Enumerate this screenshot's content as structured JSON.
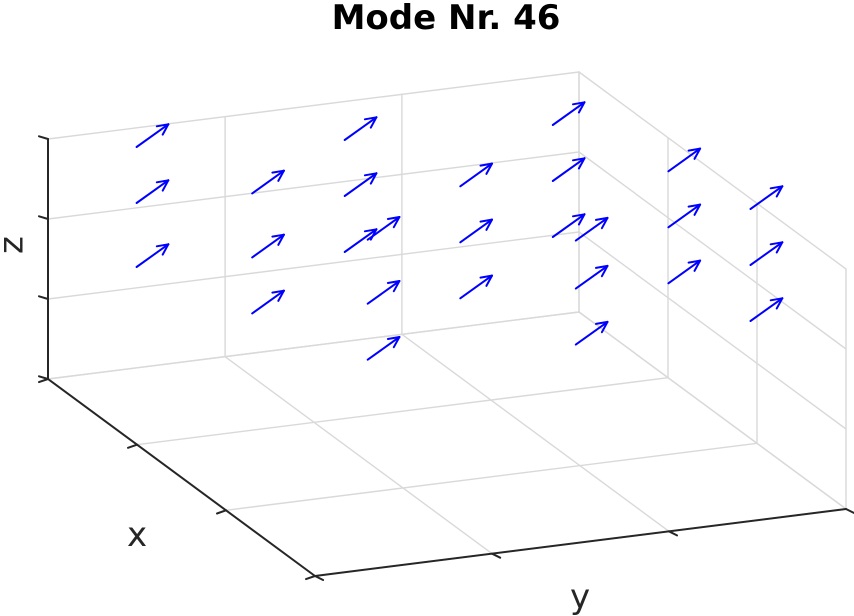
{
  "chart_data": {
    "type": "quiver3d",
    "title": "Mode Nr. 46",
    "xlabel": "x",
    "ylabel": "y",
    "zlabel": "z",
    "grid": true,
    "colors": {
      "arrows": "#0000ff",
      "grid": "#d9d9d9",
      "axis": "#262626",
      "background": "#ffffff"
    },
    "arrows": [
      {
        "x": 0.1,
        "y": 0.25,
        "z": 1.5,
        "u": 0.05,
        "v": 0.05,
        "w": 0.3
      },
      {
        "x": 0.1,
        "y": 0.25,
        "z": 2.3,
        "u": 0.05,
        "v": 0.05,
        "w": 0.3
      },
      {
        "x": 0.1,
        "y": 0.25,
        "z": 3.0,
        "u": 0.05,
        "v": 0.05,
        "w": 0.3
      },
      {
        "x": 0.5,
        "y": 0.35,
        "z": 1.7,
        "u": 0.05,
        "v": 0.05,
        "w": 0.3
      },
      {
        "x": 0.5,
        "y": 0.35,
        "z": 2.4,
        "u": 0.05,
        "v": 0.05,
        "w": 0.3
      },
      {
        "x": 0.5,
        "y": 0.35,
        "z": 3.2,
        "u": 0.05,
        "v": 0.05,
        "w": 0.3
      },
      {
        "x": 0.9,
        "y": 0.45,
        "z": 1.9,
        "u": 0.05,
        "v": 0.05,
        "w": 0.3
      },
      {
        "x": 0.9,
        "y": 0.45,
        "z": 2.6,
        "u": 0.05,
        "v": 0.05,
        "w": 0.3
      },
      {
        "x": 0.9,
        "y": 0.45,
        "z": 3.4,
        "u": 0.05,
        "v": 0.05,
        "w": 0.3
      },
      {
        "x": 0.2,
        "y": 0.95,
        "z": 1.6,
        "u": 0.05,
        "v": 0.05,
        "w": 0.3
      },
      {
        "x": 0.2,
        "y": 0.95,
        "z": 2.3,
        "u": 0.05,
        "v": 0.05,
        "w": 0.3
      },
      {
        "x": 0.2,
        "y": 0.95,
        "z": 3.0,
        "u": 0.05,
        "v": 0.05,
        "w": 0.3
      },
      {
        "x": 0.6,
        "y": 1.05,
        "z": 1.8,
        "u": 0.05,
        "v": 0.05,
        "w": 0.3
      },
      {
        "x": 0.6,
        "y": 1.05,
        "z": 2.5,
        "u": 0.05,
        "v": 0.05,
        "w": 0.3
      },
      {
        "x": 0.6,
        "y": 1.05,
        "z": 3.2,
        "u": 0.05,
        "v": 0.05,
        "w": 0.3
      },
      {
        "x": 1.0,
        "y": 1.15,
        "z": 2.0,
        "u": 0.05,
        "v": 0.05,
        "w": 0.3
      },
      {
        "x": 1.0,
        "y": 1.15,
        "z": 2.7,
        "u": 0.05,
        "v": 0.05,
        "w": 0.3
      },
      {
        "x": 1.0,
        "y": 1.15,
        "z": 3.3,
        "u": 0.05,
        "v": 0.05,
        "w": 0.3
      },
      {
        "x": 0.3,
        "y": 1.65,
        "z": 1.7,
        "u": 0.05,
        "v": 0.05,
        "w": 0.3
      },
      {
        "x": 0.3,
        "y": 1.65,
        "z": 2.4,
        "u": 0.05,
        "v": 0.05,
        "w": 0.3
      },
      {
        "x": 0.3,
        "y": 1.65,
        "z": 3.1,
        "u": 0.05,
        "v": 0.05,
        "w": 0.3
      },
      {
        "x": 0.7,
        "y": 1.75,
        "z": 1.9,
        "u": 0.05,
        "v": 0.05,
        "w": 0.3
      },
      {
        "x": 0.7,
        "y": 1.75,
        "z": 2.6,
        "u": 0.05,
        "v": 0.05,
        "w": 0.3
      },
      {
        "x": 0.7,
        "y": 1.75,
        "z": 3.3,
        "u": 0.05,
        "v": 0.05,
        "w": 0.3
      },
      {
        "x": 0.95,
        "y": 1.85,
        "z": 1.9,
        "u": 0.05,
        "v": 0.05,
        "w": 0.3
      },
      {
        "x": 0.95,
        "y": 1.85,
        "z": 2.6,
        "u": 0.05,
        "v": 0.05,
        "w": 0.3
      },
      {
        "x": 0.95,
        "y": 1.85,
        "z": 3.3,
        "u": 0.05,
        "v": 0.05,
        "w": 0.3
      }
    ]
  }
}
